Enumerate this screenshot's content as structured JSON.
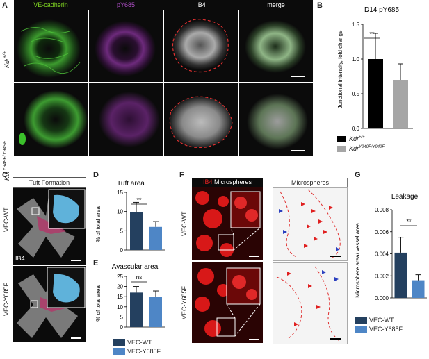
{
  "panels": {
    "A": {
      "label": "A",
      "headers": [
        "VE-cadherin",
        "pY685",
        "IB4",
        "merge"
      ],
      "header_colors": [
        "#7ed321",
        "#b04fc8",
        "#ffffff",
        "#ffffff"
      ],
      "rows": [
        "Kdr +/+",
        "Kdr Y949F/Y949F"
      ],
      "row_main": "Kdr",
      "row_sup": [
        "+/+",
        "Y949F/Y949F"
      ]
    },
    "B": {
      "label": "B",
      "title": "D14 pY685",
      "ylabel": "Junctional intensity, fold change",
      "sig": "**",
      "legend": [
        {
          "name_main": "Kdr",
          "name_sup": "+/+",
          "color": "#000000"
        },
        {
          "name_main": "Kdr",
          "name_sup": "Y949F/Y949F",
          "color": "#a6a6a6"
        }
      ]
    },
    "C": {
      "label": "C",
      "header": "Tuft Formation",
      "rows": [
        "VEC-WT",
        "VEC-Y685F"
      ],
      "stain": "IB4"
    },
    "D": {
      "label": "D",
      "title": "Tuft area",
      "ylabel": "% of total area",
      "sig": "**"
    },
    "E": {
      "label": "E",
      "title": "Avascular area",
      "ylabel": "% of total area",
      "sig": "ns"
    },
    "F": {
      "label": "F",
      "header_left_a": "IB4",
      "header_left_b": "Microspheres",
      "header_right": "Microspheres",
      "rows": [
        "VEC-WT",
        "VEC-Y685F"
      ]
    },
    "G": {
      "label": "G",
      "title": "Leakage",
      "ylabel": "Microsphere area/ vessel area",
      "sig": "**",
      "legend": [
        {
          "name": "VEC-WT",
          "color": "#24405f"
        },
        {
          "name": "VEC-Y685F",
          "color": "#4e86c6"
        }
      ]
    },
    "DE_legend": [
      {
        "name": "VEC-WT",
        "color": "#24405f"
      },
      {
        "name": "VEC-Y685F",
        "color": "#4e86c6"
      }
    ]
  },
  "chart_data": [
    {
      "id": "B",
      "type": "bar",
      "title": "D14 pY685",
      "ylabel": "Junctional intensity, fold change",
      "categories": [
        "Kdr +/+",
        "Kdr Y949F/Y949F"
      ],
      "values": [
        1.0,
        0.7
      ],
      "errors": [
        0.37,
        0.23
      ],
      "colors": [
        "#000000",
        "#a6a6a6"
      ],
      "ylim": [
        0,
        1.5
      ],
      "yticks": [
        0.0,
        0.5,
        1.0,
        1.5
      ],
      "ytick_labels": [
        "0.0",
        "0.5",
        "1.0",
        "1.5"
      ]
    },
    {
      "id": "D",
      "type": "bar",
      "title": "Tuft area",
      "ylabel": "% of total area",
      "categories": [
        "VEC-WT",
        "VEC-Y685F"
      ],
      "values": [
        9.8,
        6.0
      ],
      "errors": [
        2.6,
        1.4
      ],
      "colors": [
        "#24405f",
        "#4e86c6"
      ],
      "ylim": [
        0,
        15
      ],
      "yticks": [
        0,
        5,
        10,
        15
      ],
      "ytick_labels": [
        "0",
        "5",
        "10",
        "15"
      ]
    },
    {
      "id": "E",
      "type": "bar",
      "title": "Avascular area",
      "ylabel": "% of total area",
      "categories": [
        "VEC-WT",
        "VEC-Y685F"
      ],
      "values": [
        17.0,
        15.0
      ],
      "errors": [
        3.0,
        2.8
      ],
      "colors": [
        "#24405f",
        "#4e86c6"
      ],
      "ylim": [
        0,
        25
      ],
      "yticks": [
        0,
        5,
        10,
        15,
        20,
        25
      ],
      "ytick_labels": [
        "0",
        "5",
        "10",
        "15",
        "20",
        "25"
      ]
    },
    {
      "id": "G",
      "type": "bar",
      "title": "Leakage",
      "ylabel": "Microsphere area/ vessel area",
      "categories": [
        "VEC-WT",
        "VEC-Y685F"
      ],
      "values": [
        0.0041,
        0.0016
      ],
      "errors": [
        0.0014,
        0.0005
      ],
      "colors": [
        "#24405f",
        "#4e86c6"
      ],
      "ylim": [
        0,
        0.008
      ],
      "yticks": [
        0,
        0.002,
        0.004,
        0.006,
        0.008
      ],
      "ytick_labels": [
        "0.000",
        "0.002",
        "0.004",
        "0.006",
        "0.008"
      ]
    }
  ]
}
